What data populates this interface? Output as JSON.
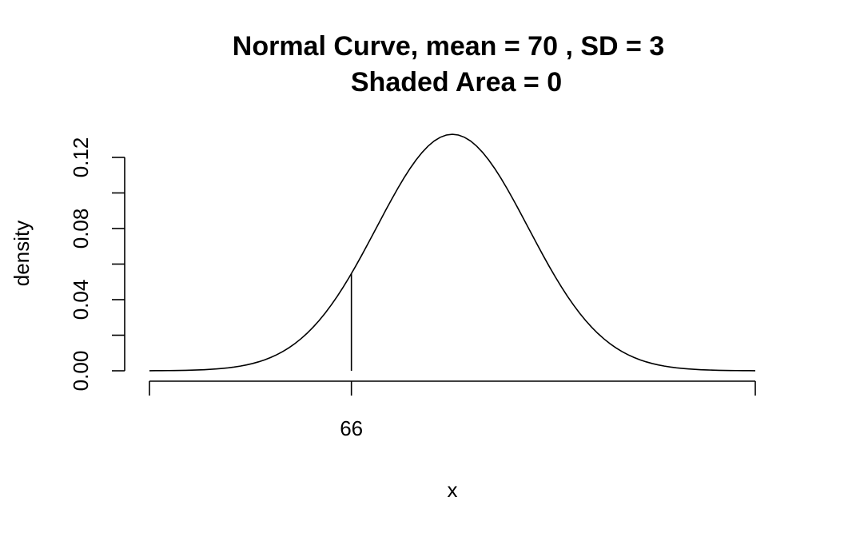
{
  "chart_data": {
    "type": "line",
    "title": "Normal Curve, mean =  70 , SD =  3",
    "subtitle": "Shaded Area =  0",
    "xlabel": "x",
    "ylabel": "density",
    "distribution": {
      "name": "normal",
      "mean": 70,
      "sd": 3
    },
    "xlim": [
      58,
      82
    ],
    "ylim": [
      0,
      0.133
    ],
    "y_ticks": [
      "0.00",
      "0.04",
      "0.08",
      "0.12"
    ],
    "y_tick_values": [
      0.0,
      0.02,
      0.04,
      0.06,
      0.08,
      0.1,
      0.12
    ],
    "x_axis_line": [
      58,
      82
    ],
    "x_ticks": [
      58,
      66,
      82
    ],
    "x_tick_labels": [
      "",
      "66",
      ""
    ],
    "marker_line": {
      "x": 66
    },
    "shaded_area": 0,
    "grid": false,
    "legend": "none"
  }
}
